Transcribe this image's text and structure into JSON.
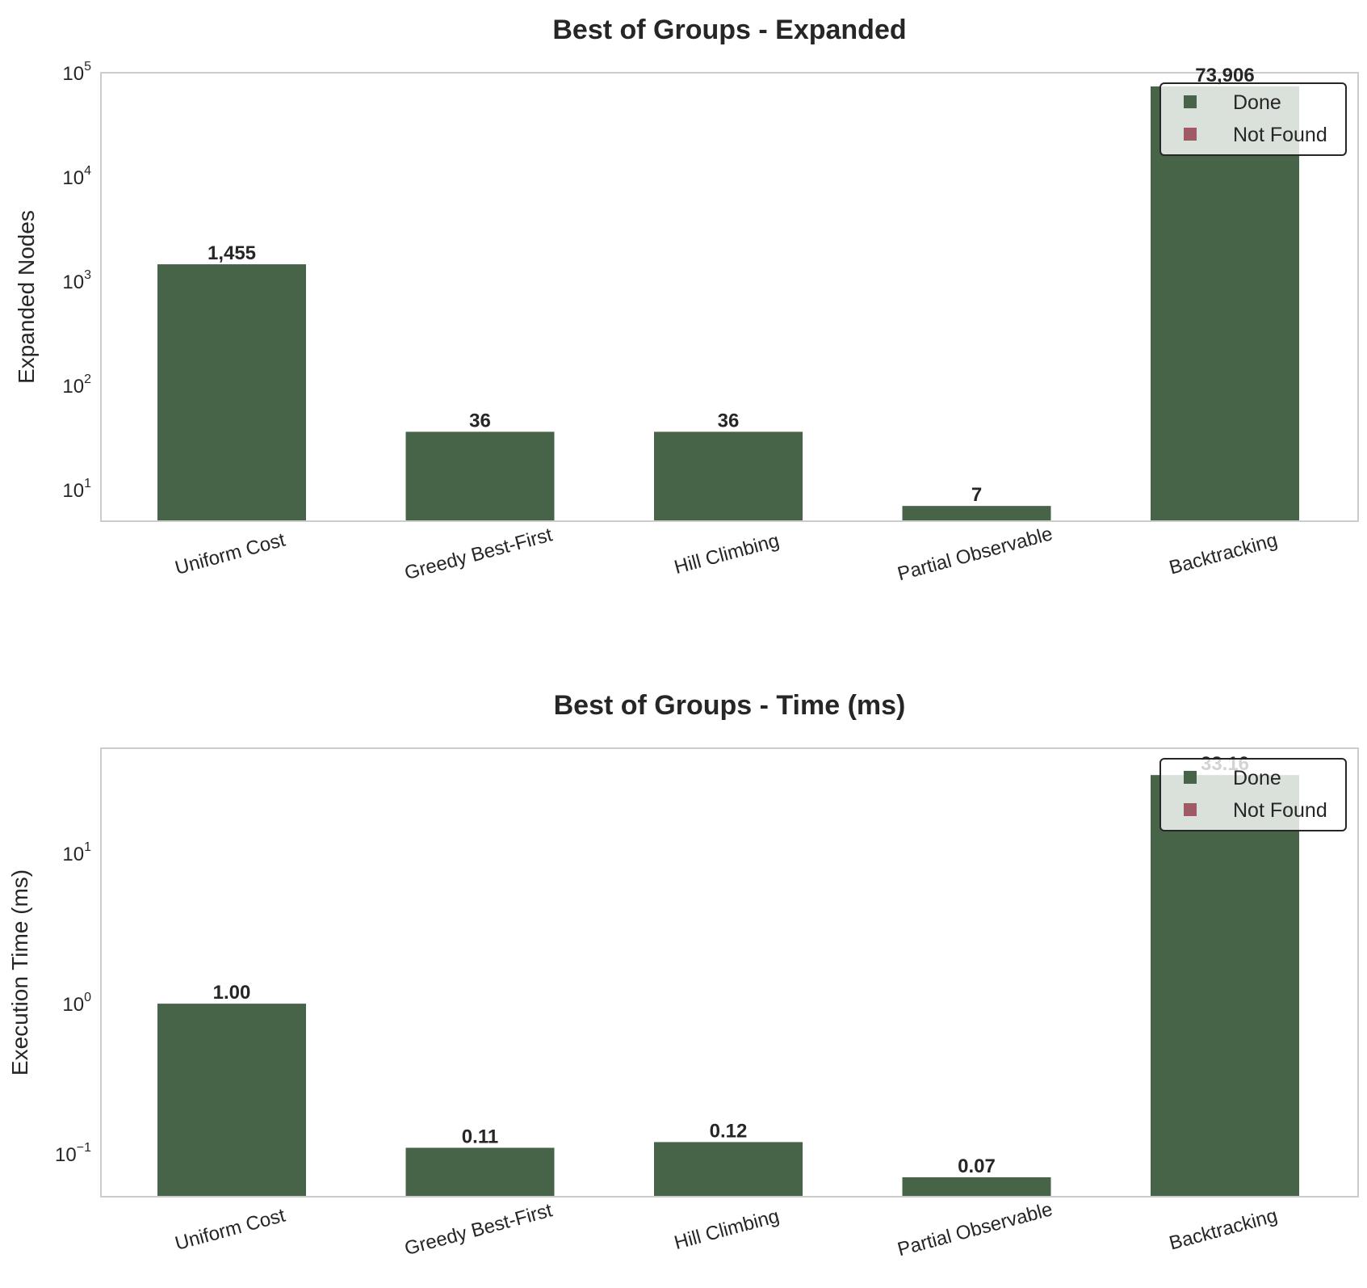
{
  "chart_data": [
    {
      "type": "bar",
      "title": "Best of Groups - Expanded",
      "ylabel": "Expanded Nodes",
      "yscale": "log",
      "ylim": [
        5,
        100000
      ],
      "yticks": [
        {
          "value": 10,
          "base": "10",
          "exp": "1"
        },
        {
          "value": 100,
          "base": "10",
          "exp": "2"
        },
        {
          "value": 1000,
          "base": "10",
          "exp": "3"
        },
        {
          "value": 10000,
          "base": "10",
          "exp": "4"
        },
        {
          "value": 100000,
          "base": "10",
          "exp": "5"
        }
      ],
      "categories": [
        "Uniform Cost",
        "Greedy Best-First",
        "Hill Climbing",
        "Partial Observable",
        "Backtracking"
      ],
      "values": [
        1455,
        36,
        36,
        7,
        73906
      ],
      "value_labels": [
        "1,455",
        "36",
        "36",
        "7",
        "73,906"
      ],
      "status": [
        "Done",
        "Done",
        "Done",
        "Done",
        "Done"
      ],
      "legend": {
        "position": "top-right",
        "entries": [
          {
            "label": "Done",
            "color": "#476449"
          },
          {
            "label": "Not Found",
            "color": "#a05a63"
          }
        ]
      },
      "grid": false
    },
    {
      "type": "bar",
      "title": "Best of Groups - Time (ms)",
      "ylabel": "Execution Time (ms)",
      "yscale": "log",
      "ylim": [
        0.052,
        50
      ],
      "yticks": [
        {
          "value": 0.1,
          "base": "10",
          "exp": "−1"
        },
        {
          "value": 1,
          "base": "10",
          "exp": "0"
        },
        {
          "value": 10,
          "base": "10",
          "exp": "1"
        }
      ],
      "categories": [
        "Uniform Cost",
        "Greedy Best-First",
        "Hill Climbing",
        "Partial Observable",
        "Backtracking"
      ],
      "values": [
        1.0,
        0.11,
        0.12,
        0.07,
        33.16
      ],
      "value_labels": [
        "1.00",
        "0.11",
        "0.12",
        "0.07",
        "33.16"
      ],
      "status": [
        "Done",
        "Done",
        "Done",
        "Done",
        "Done"
      ],
      "legend": {
        "position": "top-right",
        "entries": [
          {
            "label": "Done",
            "color": "#476449"
          },
          {
            "label": "Not Found",
            "color": "#a05a63"
          }
        ]
      },
      "grid": false
    }
  ],
  "colors": {
    "done": "#476449",
    "not_found": "#a05a63",
    "axes": "#cccccc"
  }
}
